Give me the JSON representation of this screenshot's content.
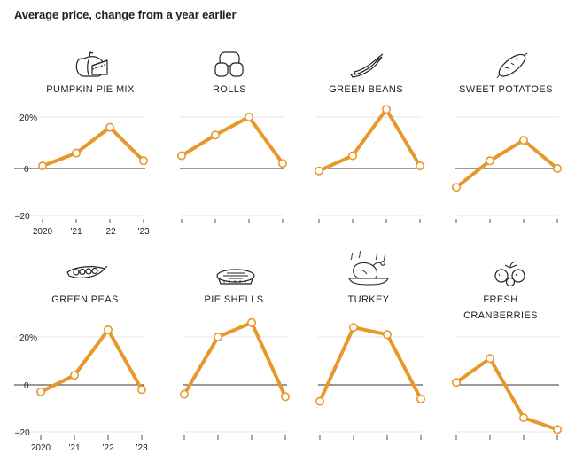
{
  "header": {
    "title": "Average price, change from a year earlier"
  },
  "colors": {
    "line": "#E8982A",
    "marker_fill": "#ffffff",
    "zero_line": "#333333",
    "grid": "#e6e6e6",
    "tick": "#555555"
  },
  "axis": {
    "y_tick_labels": [
      "20%",
      "0",
      "–20"
    ],
    "x_tick_labels": [
      "2020",
      "’21",
      "’22",
      "’23"
    ]
  },
  "chart_data": [
    {
      "type": "line",
      "title": "PUMPKIN PIE MIX",
      "icon": "pumpkin-pie-icon",
      "x": [
        2020,
        2021,
        2022,
        2023
      ],
      "values": [
        1,
        6,
        16,
        3
      ],
      "ylim": [
        -20,
        20
      ]
    },
    {
      "type": "line",
      "title": "ROLLS",
      "icon": "rolls-icon",
      "x": [
        2020,
        2021,
        2022,
        2023
      ],
      "values": [
        5,
        13,
        20,
        2
      ],
      "ylim": [
        -20,
        20
      ]
    },
    {
      "type": "line",
      "title": "GREEN BEANS",
      "icon": "green-beans-icon",
      "x": [
        2020,
        2021,
        2022,
        2023
      ],
      "values": [
        -1,
        5,
        23,
        1
      ],
      "ylim": [
        -20,
        20
      ]
    },
    {
      "type": "line",
      "title": "SWEET POTATOES",
      "icon": "sweet-potato-icon",
      "x": [
        2020,
        2021,
        2022,
        2023
      ],
      "values": [
        -8,
        3,
        11,
        0
      ],
      "ylim": [
        -20,
        20
      ]
    },
    {
      "type": "line",
      "title": "GREEN PEAS",
      "icon": "green-peas-icon",
      "x": [
        2020,
        2021,
        2022,
        2023
      ],
      "values": [
        -3,
        4,
        23,
        -2
      ],
      "ylim": [
        -20,
        20
      ]
    },
    {
      "type": "line",
      "title": "PIE SHELLS",
      "icon": "pie-shell-icon",
      "x": [
        2020,
        2021,
        2022,
        2023
      ],
      "values": [
        -4,
        20,
        26,
        -5
      ],
      "ylim": [
        -20,
        20
      ]
    },
    {
      "type": "line",
      "title": "TURKEY",
      "icon": "turkey-icon",
      "x": [
        2020,
        2021,
        2022,
        2023
      ],
      "values": [
        -7,
        24,
        21,
        -6
      ],
      "ylim": [
        -20,
        20
      ]
    },
    {
      "type": "line",
      "title": "FRESH CRANBERRIES",
      "icon": "cranberries-icon",
      "x": [
        2020,
        2021,
        2022,
        2023
      ],
      "values": [
        1,
        11,
        -14,
        -19
      ],
      "ylim": [
        -20,
        20
      ]
    }
  ]
}
